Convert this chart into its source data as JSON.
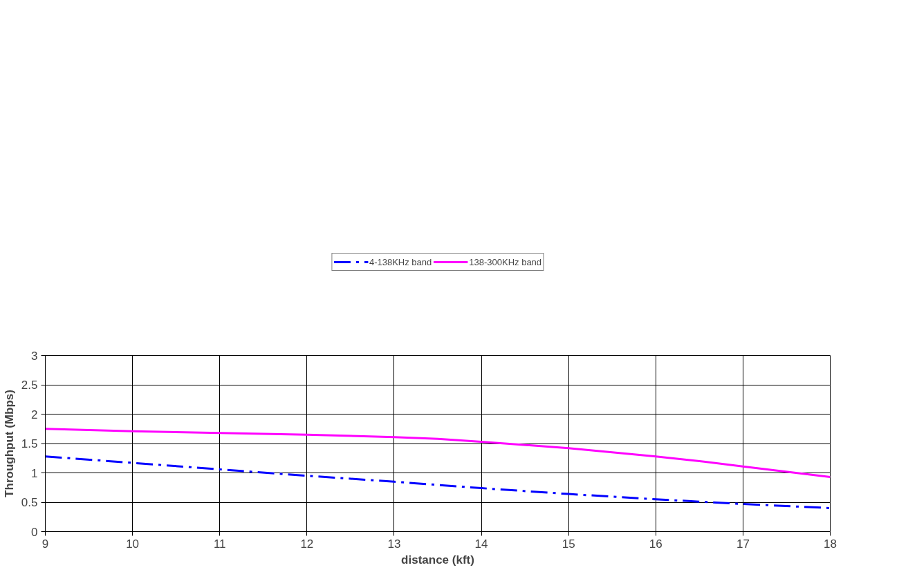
{
  "chart_data": {
    "type": "line",
    "xlabel": "distance (kft)",
    "ylabel": "Throughput (Mbps)",
    "xlim": [
      9,
      18
    ],
    "xticks": [
      9,
      10,
      11,
      12,
      13,
      14,
      15,
      16,
      17,
      18
    ],
    "ylim": [
      0,
      3
    ],
    "yticks": [
      0,
      0.5,
      1,
      1.5,
      2,
      2.5,
      3
    ],
    "grid": true,
    "legend": "top",
    "marker": "none",
    "series": [
      {
        "name": "4-138KHz band",
        "color": "#0000ff",
        "line_style": "dashed",
        "x": [
          9,
          10,
          11,
          12,
          13,
          14,
          15,
          16,
          17,
          18
        ],
        "values": [
          1.28,
          1.17,
          1.06,
          0.95,
          0.85,
          0.74,
          0.64,
          0.55,
          0.47,
          0.4
        ]
      },
      {
        "name": "138-300KHz band",
        "color": "#ff00ff",
        "line_style": "solid",
        "x": [
          9,
          10,
          11,
          12,
          13,
          13.5,
          14,
          15,
          16,
          16.5,
          17,
          18
        ],
        "values": [
          1.75,
          1.71,
          1.68,
          1.65,
          1.61,
          1.58,
          1.53,
          1.42,
          1.28,
          1.2,
          1.11,
          0.93
        ]
      }
    ]
  }
}
